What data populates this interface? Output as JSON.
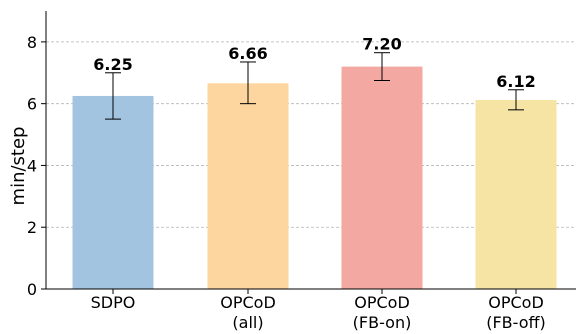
{
  "chart_data": {
    "type": "bar",
    "title": "",
    "xlabel": "",
    "ylabel": "min/step",
    "ylim": [
      0,
      9
    ],
    "yticks": [
      0,
      2,
      4,
      6,
      8
    ],
    "grid": "horizontal dashed",
    "categories": [
      [
        "SDPO"
      ],
      [
        "OPCoD",
        "(all)"
      ],
      [
        "OPCoD",
        "(FB-on)"
      ],
      [
        "OPCoD",
        "(FB-off)"
      ]
    ],
    "values": [
      6.25,
      6.66,
      7.2,
      6.12
    ],
    "value_labels": [
      "6.25",
      "6.66",
      "7.20",
      "6.12"
    ],
    "error_low": [
      5.5,
      6.0,
      6.75,
      5.8
    ],
    "error_high": [
      7.0,
      7.35,
      7.65,
      6.45
    ],
    "colors": [
      "#a3c4e0",
      "#fdd59e",
      "#f4a8a2",
      "#f5e4a3"
    ]
  }
}
